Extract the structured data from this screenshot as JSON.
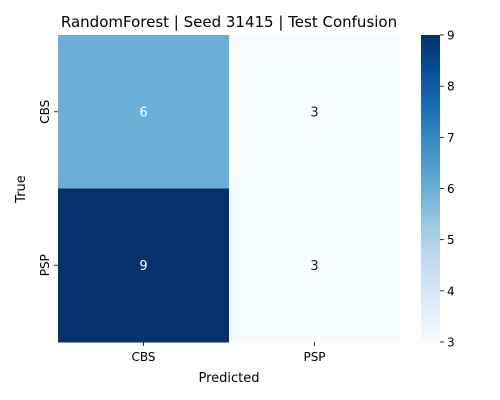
{
  "chart_data": {
    "type": "heatmap",
    "title": "RandomForest | Seed 31415 | Test Confusion",
    "xlabel": "Predicted",
    "ylabel": "True",
    "x_categories": [
      "CBS",
      "PSP"
    ],
    "y_categories": [
      "CBS",
      "PSP"
    ],
    "values": [
      [
        6,
        3
      ],
      [
        9,
        3
      ]
    ],
    "colormap": "Blues",
    "colorbar": {
      "min": 3,
      "max": 9,
      "ticks": [
        3,
        4,
        5,
        6,
        7,
        8,
        9
      ]
    },
    "annotation_colors": {
      "on_dark": "#ffffff",
      "on_light": "#262626"
    }
  }
}
